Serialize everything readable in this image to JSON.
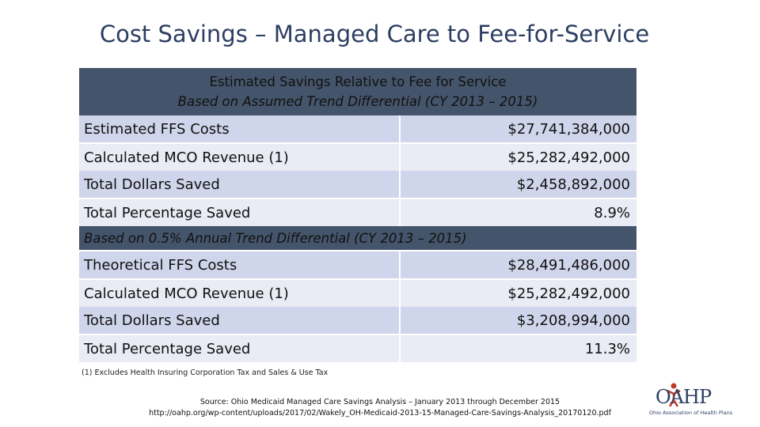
{
  "title": "Cost Savings – Managed Care to Fee-for-Service",
  "table": {
    "header_line1": "Estimated Savings Relative to Fee for Service",
    "header_line2": "Based on Assumed Trend Differential (CY 2013 – 2015)",
    "section1": [
      {
        "label": "Estimated FFS Costs",
        "value": "$27,741,384,000"
      },
      {
        "label": "Calculated MCO Revenue (1)",
        "value": "$25,282,492,000"
      },
      {
        "label": "Total Dollars Saved",
        "value": "$2,458,892,000"
      },
      {
        "label": "Total Percentage Saved",
        "value": "8.9%"
      }
    ],
    "subheader": "Based on 0.5% Annual Trend Differential (CY 2013 – 2015)",
    "section2": [
      {
        "label": "Theoretical FFS Costs",
        "value": "$28,491,486,000"
      },
      {
        "label": "Calculated MCO Revenue (1)",
        "value": "$25,282,492,000"
      },
      {
        "label": "Total Dollars Saved",
        "value": "$3,208,994,000"
      },
      {
        "label": "Total Percentage Saved",
        "value": "11.3%"
      }
    ]
  },
  "footnote": "(1) Excludes Health Insuring Corporation Tax and Sales & Use Tax",
  "source_line1": "Source: Ohio Medicaid Managed Care Savings Analysis – January 2013 through December 2015",
  "source_line2": "http://oahp.org/wp-content/uploads/2017/02/Wakely_OH-Medicaid-2013-15-Managed-Care-Savings-Analysis_20170120.pdf",
  "logo": {
    "mark_text": "OAHP",
    "tagline": "Ohio Association of Health Plans",
    "accent_color": "#c0392b"
  }
}
